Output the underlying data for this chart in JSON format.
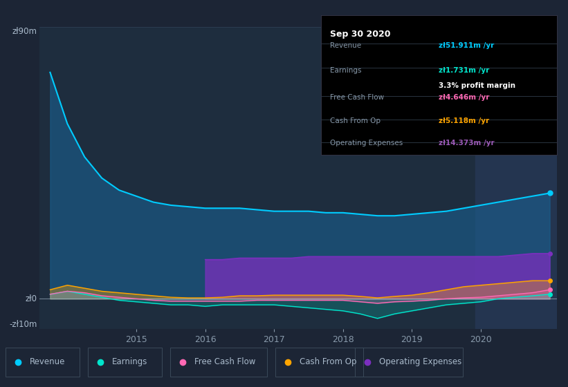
{
  "bg_color": "#1c2535",
  "chart_bg": "#1e2d3e",
  "highlight_bg": "#243550",
  "title": "Sep 30 2020",
  "tooltip": {
    "Revenue": {
      "value": "zł51.911m /yr",
      "color": "#00ccff"
    },
    "Earnings": {
      "value": "zł1.731m /yr",
      "color": "#00e5cc"
    },
    "profit_margin": "3.3% profit margin",
    "Free Cash Flow": {
      "value": "zł4.646m /yr",
      "color": "#ff69b4"
    },
    "Cash From Op": {
      "value": "zł5.118m /yr",
      "color": "#ffa500"
    },
    "Operating Expenses": {
      "value": "zł14.373m /yr",
      "color": "#9b59b6"
    }
  },
  "ylim": [
    -10,
    90
  ],
  "years": [
    2013.75,
    2014.0,
    2014.25,
    2014.5,
    2014.75,
    2015.0,
    2015.25,
    2015.5,
    2015.75,
    2016.0,
    2016.25,
    2016.5,
    2016.75,
    2017.0,
    2017.25,
    2017.5,
    2017.75,
    2018.0,
    2018.25,
    2018.5,
    2018.75,
    2019.0,
    2019.25,
    2019.5,
    2019.75,
    2020.0,
    2020.25,
    2020.5,
    2020.75,
    2021.0
  ],
  "revenue": [
    75,
    58,
    47,
    40,
    36,
    34,
    32,
    31,
    30.5,
    30,
    30,
    30,
    29.5,
    29,
    29,
    29,
    28.5,
    28.5,
    28,
    27.5,
    27.5,
    28,
    28.5,
    29,
    30,
    31,
    32,
    33,
    34,
    35
  ],
  "earnings": [
    1.5,
    2.5,
    1.5,
    0.5,
    -0.5,
    -1,
    -1.5,
    -2,
    -2,
    -2.5,
    -2,
    -2,
    -2,
    -2,
    -2.5,
    -3,
    -3.5,
    -4,
    -5,
    -6.5,
    -5,
    -4,
    -3,
    -2,
    -1.5,
    -1,
    0,
    0.5,
    1,
    1.5
  ],
  "free_cash_flow": [
    1.5,
    2.5,
    2,
    1,
    0.5,
    0,
    -0.5,
    -0.8,
    -0.8,
    -0.8,
    -0.8,
    -0.8,
    -0.5,
    -0.5,
    -0.5,
    -0.5,
    -0.5,
    -0.5,
    -1,
    -1.5,
    -1,
    -0.8,
    -0.5,
    0,
    0.3,
    0.5,
    1,
    1.5,
    2,
    3
  ],
  "cash_from_op": [
    3,
    4.5,
    3.5,
    2.5,
    2,
    1.5,
    1,
    0.5,
    0.3,
    0.3,
    0.5,
    1,
    1,
    1.2,
    1.2,
    1.2,
    1.2,
    1.2,
    0.8,
    0.3,
    0.8,
    1.2,
    2,
    3,
    4,
    4.5,
    5,
    5.5,
    6,
    6
  ],
  "op_expenses": [
    0,
    0,
    0,
    0,
    0,
    0,
    0,
    0,
    0,
    13,
    13,
    13.5,
    13.5,
    13.5,
    13.5,
    14,
    14,
    14,
    14,
    14,
    14,
    14,
    14,
    14,
    14,
    14,
    14,
    14.5,
    15,
    15
  ],
  "colors": {
    "revenue": "#00ccff",
    "earnings": "#00e5cc",
    "free_cash_flow": "#ff69b4",
    "cash_from_op": "#ffa500",
    "op_expenses": "#7b2fbe"
  },
  "legend_items": [
    "Revenue",
    "Earnings",
    "Free Cash Flow",
    "Cash From Op",
    "Operating Expenses"
  ],
  "x_ticks": [
    2015,
    2016,
    2017,
    2018,
    2019,
    2020
  ],
  "highlight_x_start": 2019.92,
  "highlight_x_end": 2021.1,
  "xlim_start": 2013.6,
  "xlim_end": 2021.1
}
